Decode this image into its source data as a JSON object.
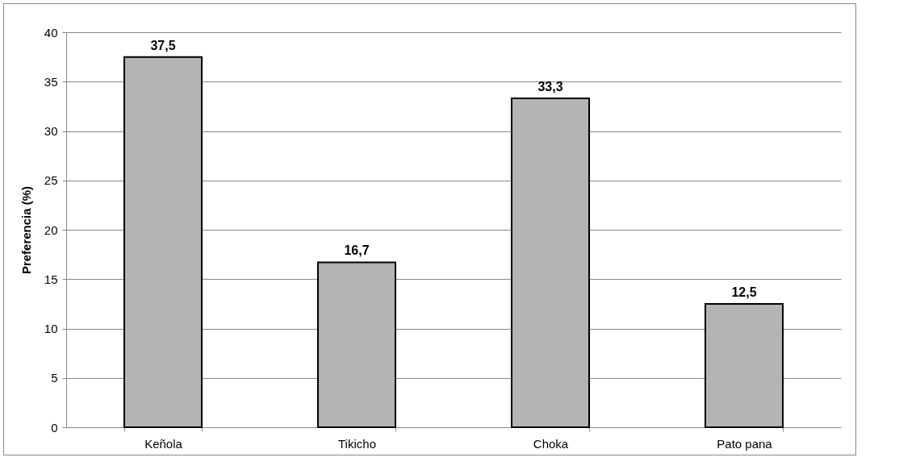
{
  "chart_data": {
    "type": "bar",
    "ylabel": "Preferencia (%)",
    "categories": [
      "Keñola",
      "Tikicho",
      "Choka",
      "Pato pana"
    ],
    "values": [
      37.5,
      16.7,
      33.3,
      12.5
    ],
    "value_labels": [
      "37,5",
      "16,7",
      "33,3",
      "12,5"
    ],
    "color": "#b4b4b4",
    "ylim": [
      0,
      40
    ],
    "yticks": [
      0,
      5,
      10,
      15,
      20,
      25,
      30,
      35,
      40
    ],
    "grid": "y"
  }
}
